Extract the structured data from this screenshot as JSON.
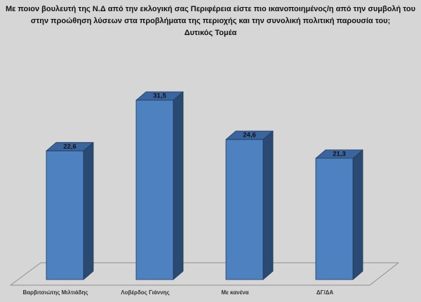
{
  "page": {
    "background": "#d6d6d6"
  },
  "title": {
    "line1": "Με ποιον βουλευτή της Ν.Δ από την εκλογική σας Περιφέρεια είστε πιο ικανοποιημένος/η από την συμβολή του",
    "line2": "στην προώθηση λύσεων στα προβλήματα της περιοχής και την συνολική πολιτική παρουσία του;",
    "line3": "Δυτικός Τομέα"
  },
  "chart_data": {
    "type": "bar",
    "style": "3d-column",
    "title": "Με ποιον βουλευτή της Ν.Δ από την εκλογική σας Περιφέρεια είστε πιο ικανοποιημένος/η από την συμβολή του στην προώθηση λύσεων στα προβλήματα της περιοχής και την συνολική πολιτική παρουσία του;",
    "subtitle": "Δυτικός Τομέα",
    "categories": [
      "Βαρβιτσιώτης Μιλτιάδης",
      "Λοβέρδος Γιάννης",
      "Με κανένα",
      "ΔΓ/ΔΑ"
    ],
    "values": [
      22.6,
      31.5,
      24.6,
      21.3
    ],
    "value_labels": [
      "22,6",
      "31,5",
      "24,6",
      "21,3"
    ],
    "xlabel": "",
    "ylabel": "",
    "ylim": [
      0,
      35
    ],
    "grid": false,
    "legend": false,
    "colors": {
      "bar_front": "#4d81bf",
      "bar_top": "#3b659e",
      "bar_side": "#2a4a72",
      "bar_outline": "#203a5a",
      "floor_outline": "#8f8f8f",
      "value_label": "#111111",
      "category_label": "#333333",
      "background": "#d6d6d6"
    }
  }
}
